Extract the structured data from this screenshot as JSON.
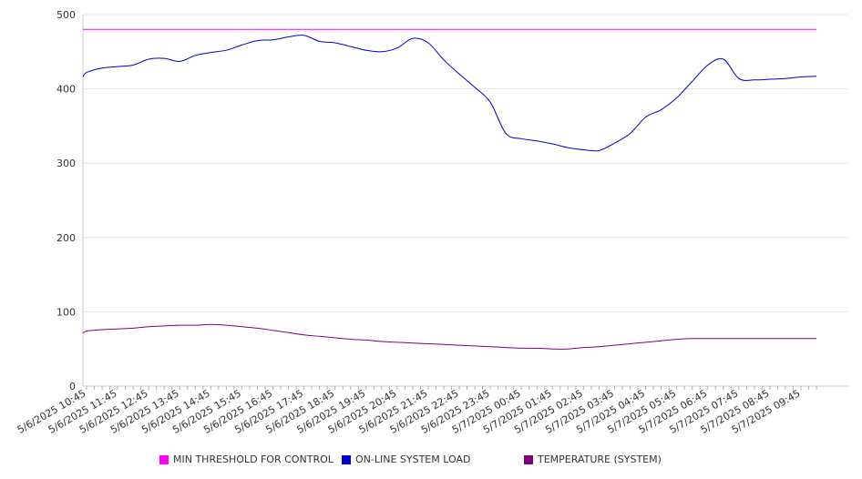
{
  "chart_data": {
    "type": "line",
    "title": "",
    "xlabel": "",
    "ylabel": "",
    "ylim": [
      0,
      500
    ],
    "y_ticks": [
      "0",
      "100",
      "200",
      "300",
      "400",
      "500"
    ],
    "grid": "horizontal",
    "legend_placement": "bottom",
    "x_tick_labels": [
      "5/6/2025 10:45",
      "5/6/2025 11:45",
      "5/6/2025 12:45",
      "5/6/2025 13:45",
      "5/6/2025 14:45",
      "5/6/2025 15:45",
      "5/6/2025 16:45",
      "5/6/2025 17:45",
      "5/6/2025 18:45",
      "5/6/2025 19:45",
      "5/6/2025 20:45",
      "5/6/2025 21:45",
      "5/6/2025 22:45",
      "5/6/2025 23:45",
      "5/7/2025 00:45",
      "5/7/2025 01:45",
      "5/7/2025 02:45",
      "5/7/2025 03:45",
      "5/7/2025 04:45",
      "5/7/2025 05:45",
      "5/7/2025 06:45",
      "5/7/2025 07:45",
      "5/7/2025 08:45",
      "5/7/2025 09:45"
    ],
    "x": [
      "5/6/2025 10:15",
      "5/6/2025 10:45",
      "5/6/2025 11:15",
      "5/6/2025 11:45",
      "5/6/2025 12:15",
      "5/6/2025 12:45",
      "5/6/2025 13:15",
      "5/6/2025 13:45",
      "5/6/2025 14:15",
      "5/6/2025 14:45",
      "5/6/2025 15:15",
      "5/6/2025 15:45",
      "5/6/2025 16:15",
      "5/6/2025 16:45",
      "5/6/2025 17:15",
      "5/6/2025 17:45",
      "5/6/2025 18:15",
      "5/6/2025 18:45",
      "5/6/2025 19:15",
      "5/6/2025 19:45",
      "5/6/2025 20:15",
      "5/6/2025 20:45",
      "5/6/2025 21:15",
      "5/6/2025 21:45",
      "5/6/2025 22:15",
      "5/6/2025 22:45",
      "5/6/2025 23:15",
      "5/6/2025 23:45",
      "5/7/2025 00:15",
      "5/7/2025 00:45",
      "5/7/2025 01:15",
      "5/7/2025 01:45",
      "5/7/2025 02:15",
      "5/7/2025 02:45",
      "5/7/2025 03:15",
      "5/7/2025 03:45",
      "5/7/2025 04:15",
      "5/7/2025 04:45",
      "5/7/2025 05:15",
      "5/7/2025 05:45",
      "5/7/2025 06:15",
      "5/7/2025 06:45",
      "5/7/2025 07:15",
      "5/7/2025 07:45",
      "5/7/2025 08:15",
      "5/7/2025 08:45",
      "5/7/2025 09:15",
      "5/7/2025 09:45",
      "5/7/2025 10:15"
    ],
    "series": [
      {
        "name": "MIN THRESHOLD FOR CONTROL",
        "color": "#ff00ff",
        "values": [
          480,
          480,
          480,
          480,
          480,
          480,
          480,
          480,
          480,
          480,
          480,
          480,
          480,
          480,
          480,
          480,
          480,
          480,
          480,
          480,
          480,
          480,
          480,
          480,
          480,
          480,
          480,
          480,
          480,
          480,
          480,
          480,
          480,
          480,
          480,
          480,
          480,
          480,
          480,
          480,
          480,
          480,
          480,
          480,
          480,
          480,
          480,
          480,
          480
        ]
      },
      {
        "name": "ON-LINE SYSTEM LOAD",
        "color": "#0000cc",
        "values": [
          416,
          422,
          428,
          430,
          432,
          440,
          441,
          437,
          445,
          449,
          452,
          459,
          465,
          466,
          470,
          472,
          464,
          462,
          457,
          452,
          450,
          455,
          468,
          462,
          439,
          420,
          402,
          382,
          340,
          333,
          330,
          326,
          321,
          318,
          317,
          327,
          340,
          362,
          372,
          388,
          410,
          432,
          440,
          414,
          412,
          413,
          414,
          416,
          417
        ]
      },
      {
        "name": "TEMPERATURE (SYSTEM)",
        "color": "#800080",
        "values": [
          71,
          74,
          76,
          77,
          78,
          80,
          81,
          82,
          82,
          83,
          82,
          80,
          78,
          75,
          72,
          69,
          67,
          65,
          63,
          62,
          60,
          59,
          58,
          57,
          56,
          55,
          54,
          53,
          52,
          51,
          51,
          50,
          50,
          52,
          53,
          55,
          57,
          59,
          61,
          63,
          64,
          64,
          64,
          64,
          64,
          64,
          64,
          64,
          64
        ]
      }
    ]
  }
}
